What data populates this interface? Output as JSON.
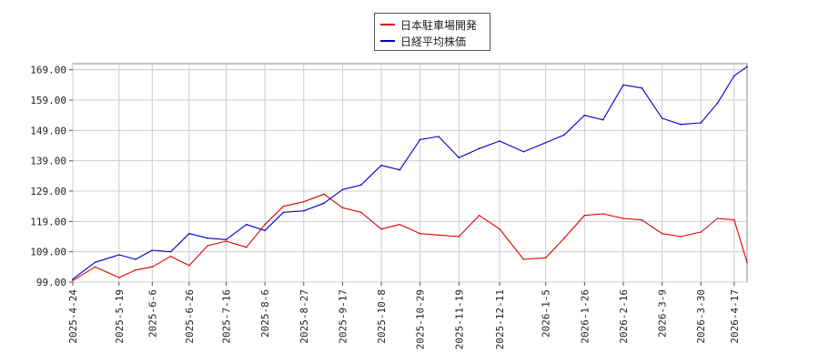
{
  "chart_data": {
    "type": "line",
    "title": "",
    "xlabel": "",
    "ylabel": "",
    "ylim": [
      99.0,
      171.0
    ],
    "y_ticks": [
      "99.00",
      "109.00",
      "119.00",
      "129.00",
      "139.00",
      "149.00",
      "159.00",
      "169.00"
    ],
    "x_ticks": [
      "2025-4-24",
      "2025-5-19",
      "2025-6-6",
      "2025-6-26",
      "2025-7-16",
      "2025-8-6",
      "2025-8-27",
      "2025-9-17",
      "2025-10-8",
      "2025-10-29",
      "2025-11-19",
      "2025-12-11",
      "2026-1-5",
      "2026-1-26",
      "2026-2-16",
      "2026-3-9",
      "2026-3-30",
      "2026-4-17"
    ],
    "grid": true,
    "legend_position": "top-center",
    "series": [
      {
        "name": "日本駐車場開発",
        "color": "#dd0000",
        "x": [
          "2025-4-24",
          "2025-5-6",
          "2025-5-19",
          "2025-5-28",
          "2025-6-6",
          "2025-6-16",
          "2025-6-26",
          "2025-7-6",
          "2025-7-16",
          "2025-7-27",
          "2025-8-6",
          "2025-8-16",
          "2025-8-27",
          "2025-9-7",
          "2025-9-17",
          "2025-9-27",
          "2025-10-8",
          "2025-10-18",
          "2025-10-29",
          "2025-11-8",
          "2025-11-19",
          "2025-11-30",
          "2025-12-11",
          "2025-12-24",
          "2026-1-5",
          "2026-1-15",
          "2026-1-26",
          "2026-2-5",
          "2026-2-16",
          "2026-2-26",
          "2026-3-9",
          "2026-3-19",
          "2026-3-30",
          "2026-4-8",
          "2026-4-17",
          "2026-4-24"
        ],
        "values": [
          99.5,
          104.0,
          100.5,
          103.0,
          104.0,
          107.5,
          104.5,
          111.0,
          112.5,
          110.5,
          118.0,
          124.0,
          125.5,
          128.0,
          123.5,
          122.0,
          116.5,
          118.0,
          115.0,
          114.5,
          114.0,
          121.0,
          116.5,
          106.5,
          107.0,
          113.5,
          121.0,
          121.5,
          120.0,
          119.5,
          115.0,
          114.0,
          115.5,
          120.0,
          119.5,
          105.5
        ]
      },
      {
        "name": "日経平均株価",
        "color": "#0000cc",
        "x": [
          "2025-4-24",
          "2025-5-6",
          "2025-5-19",
          "2025-5-28",
          "2025-6-6",
          "2025-6-16",
          "2025-6-26",
          "2025-7-6",
          "2025-7-16",
          "2025-7-27",
          "2025-8-6",
          "2025-8-16",
          "2025-8-27",
          "2025-9-7",
          "2025-9-17",
          "2025-9-27",
          "2025-10-8",
          "2025-10-18",
          "2025-10-29",
          "2025-11-8",
          "2025-11-19",
          "2025-11-30",
          "2025-12-11",
          "2025-12-24",
          "2026-1-5",
          "2026-1-15",
          "2026-1-26",
          "2026-2-5",
          "2026-2-16",
          "2026-2-26",
          "2026-3-9",
          "2026-3-19",
          "2026-3-30",
          "2026-4-8",
          "2026-4-17",
          "2026-4-24"
        ],
        "values": [
          100.0,
          105.5,
          108.0,
          106.5,
          109.5,
          109.0,
          115.0,
          113.5,
          113.0,
          118.0,
          116.0,
          122.0,
          122.5,
          125.0,
          129.5,
          131.0,
          137.5,
          136.0,
          146.0,
          147.0,
          140.0,
          143.0,
          145.5,
          142.0,
          145.0,
          147.5,
          154.0,
          152.5,
          164.0,
          163.0,
          153.0,
          151.0,
          151.5,
          158.0,
          167.0,
          170.0
        ]
      }
    ]
  }
}
